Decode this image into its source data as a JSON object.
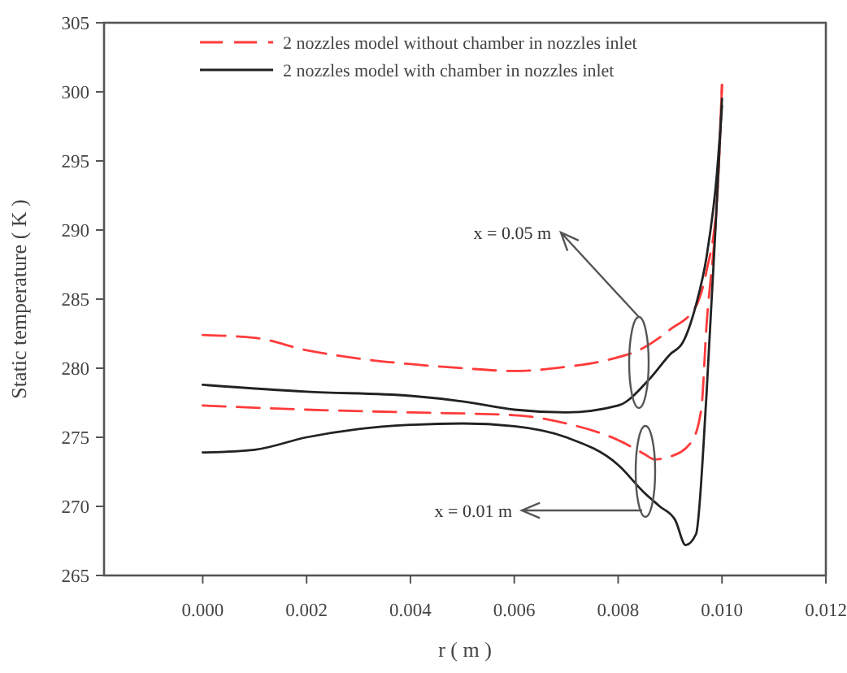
{
  "chart_data": {
    "type": "line",
    "xlabel": "r ( m )",
    "ylabel": "Static temperature ( K )",
    "xlim": [
      -0.0019,
      0.012
    ],
    "xticks": [
      {
        "value": 0,
        "label": "0.000"
      },
      {
        "value": 0.002,
        "label": "0.002"
      },
      {
        "value": 0.004,
        "label": "0.004"
      },
      {
        "value": 0.006,
        "label": "0.006"
      },
      {
        "value": 0.008,
        "label": "0.008"
      },
      {
        "value": 0.01,
        "label": "0.010"
      },
      {
        "value": 0.012,
        "label": "0.012"
      }
    ],
    "ylim": [
      265,
      305
    ],
    "yticks": [
      265,
      270,
      275,
      280,
      285,
      290,
      295,
      300,
      305
    ],
    "legend": "top",
    "grid": false,
    "marker": "none",
    "series": [
      {
        "name": "2 nozzles model without chamber in nozzles inlet",
        "color": "#ff3b3b",
        "line_style": "dashed",
        "x": [
          0,
          0.001,
          0.002,
          0.003,
          0.004,
          0.005,
          0.006,
          0.007,
          0.0078,
          0.0085,
          0.009,
          0.0095,
          0.0097,
          0.0099,
          0.01
        ],
        "values": [
          282.4,
          282.2,
          281.3,
          280.7,
          280.3,
          280,
          279.8,
          280.1,
          280.6,
          281.5,
          282.8,
          284.5,
          287,
          292,
          300.5
        ]
      },
      {
        "color": "#ff3b3b",
        "line_style": "dashed",
        "x": [
          0,
          0.002,
          0.004,
          0.006,
          0.007,
          0.008,
          0.0085,
          0.0087,
          0.009,
          0.0094,
          0.0096,
          0.0097,
          0.0099,
          0.01
        ],
        "values": [
          277.3,
          277,
          276.8,
          276.6,
          276,
          274.8,
          273.8,
          273.4,
          273.6,
          274.6,
          277,
          283,
          292,
          300.5
        ]
      },
      {
        "name": "2 nozzles model with chamber in nozzles inlet",
        "color": "#222222",
        "line_style": "solid",
        "x": [
          0,
          0.002,
          0.004,
          0.005,
          0.006,
          0.007,
          0.008,
          0.0086,
          0.009,
          0.00925,
          0.0095,
          0.0097,
          0.0099,
          0.01
        ],
        "values": [
          278.8,
          278.3,
          278,
          277.6,
          277,
          276.8,
          277.3,
          279.2,
          281,
          281.9,
          284.6,
          288,
          294,
          299
        ]
      },
      {
        "color": "#222222",
        "line_style": "solid",
        "x": [
          0,
          0.001,
          0.002,
          0.003,
          0.004,
          0.005,
          0.006,
          0.007,
          0.008,
          0.0085,
          0.0088,
          0.0091,
          0.0093,
          0.0095,
          0.0097,
          0.0099,
          0.01
        ],
        "values": [
          273.9,
          274.1,
          275,
          275.6,
          275.9,
          276,
          275.8,
          275,
          273,
          271,
          270,
          269,
          267.2,
          268,
          278,
          292,
          299.5
        ]
      }
    ],
    "annotations": [
      "x = 0.05 m",
      "x = 0.01 m"
    ]
  }
}
